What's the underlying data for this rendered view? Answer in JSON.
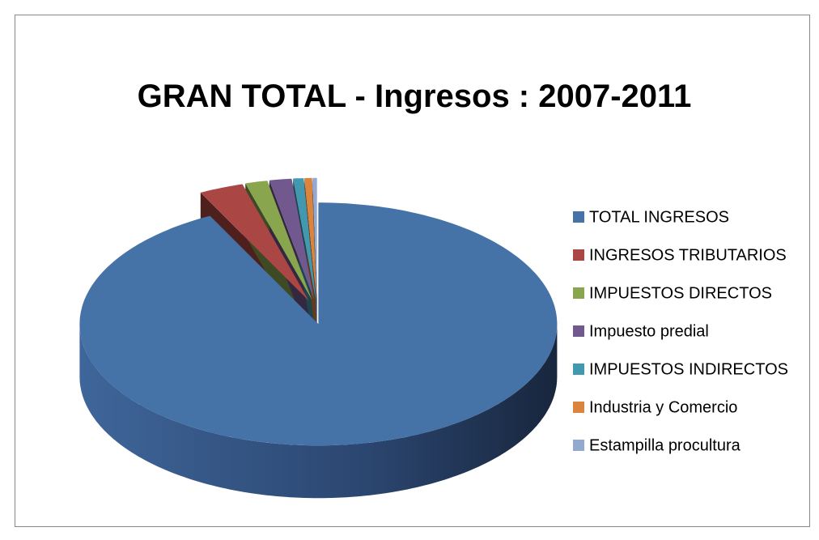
{
  "chart_data": {
    "type": "pie",
    "title": "GRAN TOTAL - Ingresos : 2007-2011",
    "categories": [
      "TOTAL INGRESOS",
      "INGRESOS TRIBUTARIOS",
      "IMPUESTOS DIRECTOS",
      "Impuesto predial",
      "IMPUESTOS INDIRECTOS",
      "Industria y Comercio",
      "Estampilla procultura"
    ],
    "values": [
      92.5,
      3,
      1.5,
      1.5,
      0.7,
      0.5,
      0.3
    ],
    "colors": [
      "#4572A7",
      "#AA4643",
      "#89A54E",
      "#71588F",
      "#4198AF",
      "#DB843D",
      "#93A9CF"
    ],
    "legend": "right"
  }
}
